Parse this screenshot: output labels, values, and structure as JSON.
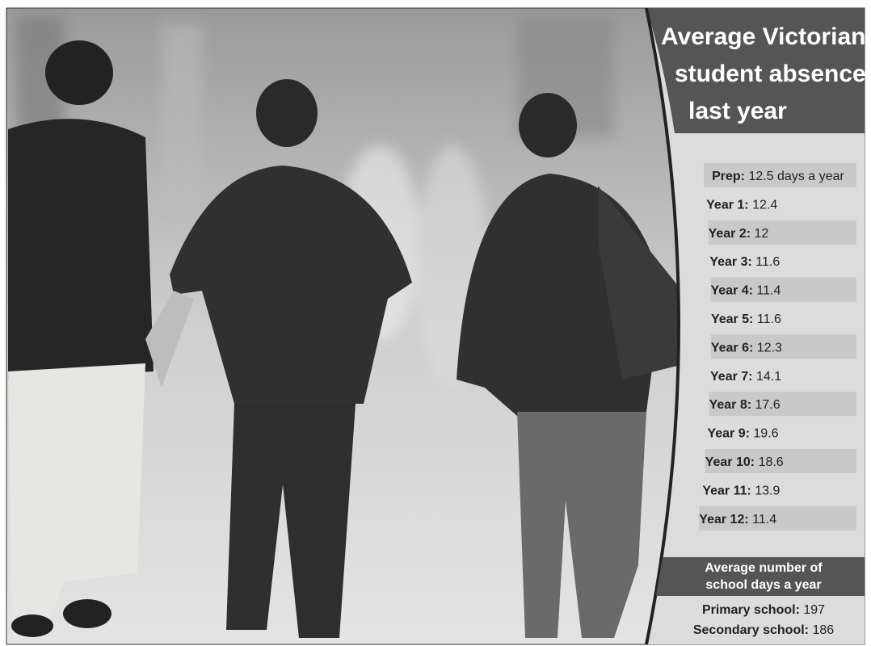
{
  "panel": {
    "title": [
      "Average Victorian",
      "student absences",
      "last year"
    ],
    "rows": [
      {
        "label": "Prep:",
        "value": "12.5 days a year"
      },
      {
        "label": "Year 1:",
        "value": "12.4"
      },
      {
        "label": "Year 2:",
        "value": "12"
      },
      {
        "label": "Year 3:",
        "value": "11.6"
      },
      {
        "label": "Year 4:",
        "value": "11.4"
      },
      {
        "label": "Year 5:",
        "value": "11.6"
      },
      {
        "label": "Year 6:",
        "value": "12.3"
      },
      {
        "label": "Year 7:",
        "value": "14.1"
      },
      {
        "label": "Year 8:",
        "value": "17.6"
      },
      {
        "label": "Year 9:",
        "value": "19.6"
      },
      {
        "label": "Year 10:",
        "value": "18.6"
      },
      {
        "label": "Year 11:",
        "value": "13.9"
      },
      {
        "label": "Year 12:",
        "value": "11.4"
      }
    ],
    "footer_title": [
      "Average number of",
      "school days a year"
    ],
    "footer_rows": [
      {
        "label": "Primary school:",
        "value": "197"
      },
      {
        "label": "Secondary school:",
        "value": "186"
      }
    ]
  }
}
